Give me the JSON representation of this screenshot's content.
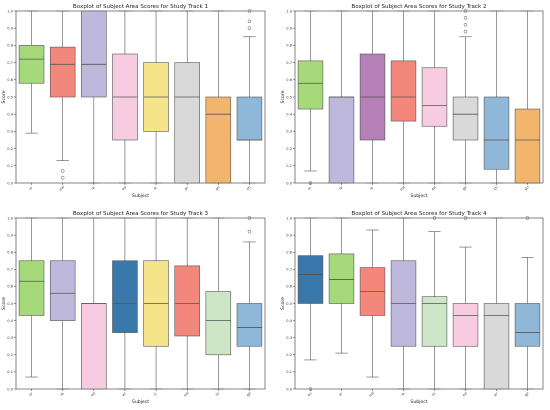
{
  "chart_data": [
    {
      "type": "box",
      "title": "Boxplot of Subject Area Scores for Study Track 1",
      "xlabel": "Subject",
      "ylabel": "Score",
      "ylim": [
        0,
        1.0
      ],
      "yticks": [
        0.0,
        0.1,
        0.2,
        0.3,
        0.4,
        0.5,
        0.6,
        0.7,
        0.8,
        0.9,
        1.0
      ],
      "categories": [
        "sr",
        "mir",
        "ia",
        "ea",
        "si",
        "pr",
        "pn",
        "ch"
      ],
      "boxes": [
        {
          "label": "sr",
          "min": 0.29,
          "q1": 0.58,
          "median": 0.72,
          "q3": 0.8,
          "max": 1.0,
          "outliers": [],
          "color": "#a6d97a"
        },
        {
          "label": "mir",
          "min": 0.13,
          "q1": 0.5,
          "median": 0.69,
          "q3": 0.79,
          "max": 1.0,
          "outliers": [
            0.07,
            0.03
          ],
          "color": "#f4877c"
        },
        {
          "label": "ia",
          "min": 0.0,
          "q1": 0.5,
          "median": 0.69,
          "q3": 1.0,
          "max": 1.0,
          "outliers": [],
          "color": "#beb8dc"
        },
        {
          "label": "ea",
          "min": 0.0,
          "q1": 0.25,
          "median": 0.5,
          "q3": 0.75,
          "max": 1.0,
          "outliers": [],
          "color": "#f7cce0"
        },
        {
          "label": "si",
          "min": 0.0,
          "q1": 0.3,
          "median": 0.5,
          "q3": 0.7,
          "max": 1.0,
          "outliers": [],
          "color": "#f5e48a"
        },
        {
          "label": "pr",
          "min": 0.0,
          "q1": 0.0,
          "median": 0.5,
          "q3": 0.7,
          "max": 1.0,
          "outliers": [],
          "color": "#d9d9d9"
        },
        {
          "label": "pn",
          "min": 0.0,
          "q1": 0.0,
          "median": 0.4,
          "q3": 0.5,
          "max": 1.0,
          "outliers": [],
          "color": "#f2b56e"
        },
        {
          "label": "ch",
          "min": 0.0,
          "q1": 0.25,
          "median": 0.25,
          "q3": 0.5,
          "max": 0.85,
          "outliers": [
            0.9,
            0.94,
            1.0
          ],
          "color": "#8fb8d8"
        }
      ]
    },
    {
      "type": "box",
      "title": "Boxplot of Subject Area Scores for Study Track 2",
      "xlabel": "Subject",
      "ylabel": "Score",
      "ylim": [
        0,
        1.0
      ],
      "yticks": [
        0.0,
        0.1,
        0.2,
        0.3,
        0.4,
        0.5,
        0.6,
        0.7,
        0.8,
        0.9,
        1.0
      ],
      "categories": [
        "sr",
        "ia",
        "si",
        "mir",
        "ea",
        "ge",
        "ch",
        "pn"
      ],
      "boxes": [
        {
          "label": "sr",
          "min": 0.07,
          "q1": 0.43,
          "median": 0.58,
          "q3": 0.71,
          "max": 1.0,
          "outliers": [
            0.0
          ],
          "color": "#a6d97a"
        },
        {
          "label": "ia",
          "min": 0.0,
          "q1": 0.0,
          "median": 0.5,
          "q3": 0.5,
          "max": 1.0,
          "outliers": [],
          "color": "#beb8dc"
        },
        {
          "label": "si",
          "min": 0.0,
          "q1": 0.25,
          "median": 0.5,
          "q3": 0.75,
          "max": 1.0,
          "outliers": [],
          "color": "#b57fb8"
        },
        {
          "label": "mir",
          "min": 0.0,
          "q1": 0.36,
          "median": 0.5,
          "q3": 0.71,
          "max": 1.0,
          "outliers": [],
          "color": "#f4877c"
        },
        {
          "label": "ea",
          "min": 0.0,
          "q1": 0.33,
          "median": 0.45,
          "q3": 0.67,
          "max": 1.0,
          "outliers": [],
          "color": "#f7cce0"
        },
        {
          "label": "ge",
          "min": 0.0,
          "q1": 0.25,
          "median": 0.4,
          "q3": 0.5,
          "max": 0.85,
          "outliers": [
            0.88,
            0.92,
            0.96,
            1.0
          ],
          "color": "#d9d9d9"
        },
        {
          "label": "ch",
          "min": 0.0,
          "q1": 0.08,
          "median": 0.25,
          "q3": 0.5,
          "max": 1.0,
          "outliers": [],
          "color": "#8fb8d8"
        },
        {
          "label": "pn",
          "min": 0.0,
          "q1": 0.0,
          "median": 0.25,
          "q3": 0.43,
          "max": 1.0,
          "outliers": [],
          "color": "#f2b56e"
        }
      ]
    },
    {
      "type": "box",
      "title": "Boxplot of Subject Area Scores for Study Track 3",
      "xlabel": "Subject",
      "ylabel": "Score",
      "ylim": [
        0,
        1.0
      ],
      "yticks": [
        0.0,
        0.1,
        0.2,
        0.3,
        0.4,
        0.5,
        0.6,
        0.7,
        0.8,
        0.9,
        1.0
      ],
      "categories": [
        "sr",
        "ia",
        "ea",
        "ec",
        "ci",
        "mir",
        "hi",
        "ge"
      ],
      "boxes": [
        {
          "label": "sr",
          "min": 0.07,
          "q1": 0.43,
          "median": 0.63,
          "q3": 0.75,
          "max": 1.0,
          "outliers": [],
          "color": "#a6d97a"
        },
        {
          "label": "ia",
          "min": 0.0,
          "q1": 0.4,
          "median": 0.56,
          "q3": 0.75,
          "max": 1.0,
          "outliers": [],
          "color": "#beb8dc"
        },
        {
          "label": "ea",
          "min": 0.0,
          "q1": 0.0,
          "median": 0.5,
          "q3": 0.5,
          "max": 1.0,
          "outliers": [],
          "color": "#f7cce0"
        },
        {
          "label": "ec",
          "min": 0.0,
          "q1": 0.33,
          "median": 0.5,
          "q3": 0.75,
          "max": 1.0,
          "outliers": [],
          "color": "#3a77ab"
        },
        {
          "label": "ci",
          "min": 0.0,
          "q1": 0.25,
          "median": 0.5,
          "q3": 0.75,
          "max": 1.0,
          "outliers": [],
          "color": "#f5e48a"
        },
        {
          "label": "mir",
          "min": 0.0,
          "q1": 0.31,
          "median": 0.5,
          "q3": 0.72,
          "max": 1.0,
          "outliers": [],
          "color": "#f4877c"
        },
        {
          "label": "hi",
          "min": 0.0,
          "q1": 0.2,
          "median": 0.4,
          "q3": 0.57,
          "max": 1.0,
          "outliers": [],
          "color": "#cde6c6"
        },
        {
          "label": "ge",
          "min": 0.0,
          "q1": 0.25,
          "median": 0.36,
          "q3": 0.5,
          "max": 0.86,
          "outliers": [
            0.92,
            1.0
          ],
          "color": "#8fb8d8"
        }
      ]
    },
    {
      "type": "box",
      "title": "Boxplot of Subject Area Scores for Study Track 4",
      "xlabel": "Subject",
      "ylabel": "Score",
      "ylim": [
        0,
        1.0
      ],
      "yticks": [
        0.0,
        0.1,
        0.2,
        0.3,
        0.4,
        0.5,
        0.6,
        0.7,
        0.8,
        0.9,
        1.0
      ],
      "categories": [
        "ec",
        "sr",
        "mir",
        "ia",
        "hi",
        "ea",
        "pr",
        "ge"
      ],
      "boxes": [
        {
          "label": "ec",
          "min": 0.17,
          "q1": 0.5,
          "median": 0.67,
          "q3": 0.78,
          "max": 1.0,
          "outliers": [
            0.0
          ],
          "color": "#3a77ab"
        },
        {
          "label": "sr",
          "min": 0.21,
          "q1": 0.5,
          "median": 0.64,
          "q3": 0.79,
          "max": 1.0,
          "outliers": [],
          "color": "#a6d97a"
        },
        {
          "label": "mir",
          "min": 0.07,
          "q1": 0.43,
          "median": 0.57,
          "q3": 0.71,
          "max": 0.93,
          "outliers": [],
          "color": "#f4877c"
        },
        {
          "label": "ia",
          "min": 0.0,
          "q1": 0.25,
          "median": 0.5,
          "q3": 0.75,
          "max": 1.0,
          "outliers": [],
          "color": "#beb8dc"
        },
        {
          "label": "hi",
          "min": 0.0,
          "q1": 0.25,
          "median": 0.5,
          "q3": 0.54,
          "max": 0.92,
          "outliers": [
            1.0
          ],
          "color": "#cde6c6"
        },
        {
          "label": "ea",
          "min": 0.0,
          "q1": 0.25,
          "median": 0.43,
          "q3": 0.5,
          "max": 0.83,
          "outliers": [
            1.0
          ],
          "color": "#f7cce0"
        },
        {
          "label": "pr",
          "min": 0.0,
          "q1": 0.0,
          "median": 0.43,
          "q3": 0.5,
          "max": 1.0,
          "outliers": [],
          "color": "#d9d9d9"
        },
        {
          "label": "ge",
          "min": 0.0,
          "q1": 0.25,
          "median": 0.33,
          "q3": 0.5,
          "max": 0.77,
          "outliers": [
            1.0
          ],
          "color": "#8fb8d8"
        }
      ]
    }
  ]
}
